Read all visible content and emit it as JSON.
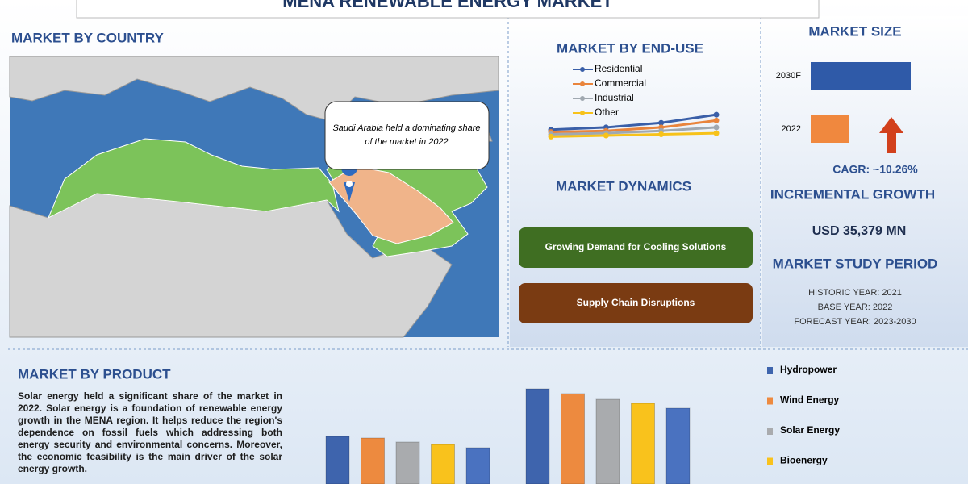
{
  "header": {
    "title": "MENA RENEWABLE ENERGY MARKET"
  },
  "country": {
    "title": "MARKET BY COUNTRY",
    "callout": "Saudi Arabia held a dominating share of the market in 2022"
  },
  "dynamics": {
    "title": "MARKET DYNAMICS",
    "items": [
      "Growing Demand for Cooling Solutions",
      "Supply Chain Disruptions"
    ]
  },
  "summary": {
    "cagr": "CAGR:  ~10.26%",
    "incremental_title": "INCREMENTAL GROWTH",
    "incremental_value": "USD 35,379 MN",
    "study_title": "MARKET STUDY PERIOD",
    "study": [
      "HISTORIC YEAR: 2021",
      "BASE YEAR: 2022",
      "FORECAST YEAR: 2023-2030"
    ]
  },
  "product": {
    "text": "Solar energy held a significant share of the market in 2022. Solar energy is a foundation of renewable energy growth in the MENA region. It helps reduce the region's dependence on fossil fuels which addressing both energy security and environmental concerns. Moreover, the economic feasibility is the main driver of the solar energy growth."
  },
  "chart_data": [
    {
      "type": "line",
      "title": "MARKET BY END-USE",
      "categories": [
        null,
        null,
        null,
        null
      ],
      "ylim": [
        0,
        30
      ],
      "series": [
        {
          "name": "Residential",
          "color": "#3a5fa8",
          "values": [
            12,
            14,
            18,
            25
          ]
        },
        {
          "name": "Commercial",
          "color": "#e9843c",
          "values": [
            10,
            11,
            14,
            20
          ]
        },
        {
          "name": "Industrial",
          "color": "#a0a8b0",
          "values": [
            8,
            9,
            11,
            14
          ]
        },
        {
          "name": "Other",
          "color": "#f7c21a",
          "values": [
            6,
            7,
            8,
            9
          ]
        }
      ]
    },
    {
      "type": "hbar",
      "title": "MARKET SIZE",
      "categories": [
        "2030F",
        "2022"
      ],
      "values": [
        62,
        24
      ],
      "colors": [
        "#2f5aa8",
        "#f0883e"
      ],
      "xlim": [
        0,
        65
      ]
    },
    {
      "type": "bar",
      "title": "MARKET BY PRODUCT",
      "categories": [
        null,
        null
      ],
      "ylim": [
        0,
        130
      ],
      "series": [
        {
          "name": "Hydropower",
          "color": "#3e64ad",
          "values": [
            59,
            118
          ]
        },
        {
          "name": "Wind Energy",
          "color": "#ed8a3f",
          "values": [
            57,
            112
          ]
        },
        {
          "name": "Solar Energy",
          "color": "#a9abae",
          "values": [
            52,
            105
          ]
        },
        {
          "name": "Bioenergy",
          "color": "#f9c21c",
          "values": [
            49,
            100
          ]
        },
        {
          "color": "#4a72c0",
          "values": [
            45,
            94
          ]
        }
      ]
    }
  ]
}
